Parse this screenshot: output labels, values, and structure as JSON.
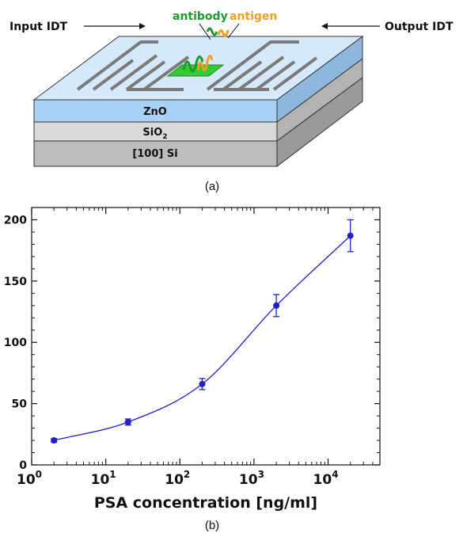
{
  "diagram": {
    "labels": {
      "input_idt": "Input IDT",
      "output_idt": "Output IDT",
      "antibody": "antibody",
      "antigen": "antigen",
      "zno": "ZnO",
      "sio2_base": "SiO",
      "sio2_sub": "2",
      "si": "[100] Si"
    },
    "caption": "(a)",
    "colors": {
      "antibody": "#1a9a2a",
      "antigen": "#f0a020",
      "zno": "#a9d0f5",
      "sio2": "#d9d9d9",
      "si": "#bcbcbc",
      "pad": "#33cc33"
    }
  },
  "chart_caption": "(b)",
  "chart_data": {
    "type": "scatter",
    "title": "",
    "xlabel": "PSA concentration [ng/ml]",
    "ylabel": "",
    "x_scale": "log",
    "xlim": [
      1,
      50000
    ],
    "ylim": [
      0,
      210
    ],
    "x_ticks": [
      1,
      10,
      100,
      1000,
      10000
    ],
    "x_tick_labels": [
      {
        "base": "10",
        "exp": "0"
      },
      {
        "base": "10",
        "exp": "1"
      },
      {
        "base": "10",
        "exp": "2"
      },
      {
        "base": "10",
        "exp": "3"
      },
      {
        "base": "10",
        "exp": "4"
      }
    ],
    "y_ticks": [
      0,
      50,
      100,
      150,
      200
    ],
    "y_tick_labels": [
      "0",
      "50",
      "100",
      "150",
      "200"
    ],
    "grid": false,
    "color": "#1f1fd0",
    "series": [
      {
        "x": [
          2,
          20,
          200,
          2000,
          20000
        ],
        "y": [
          20,
          35,
          66,
          130,
          187
        ],
        "err": [
          1.5,
          2.5,
          4.5,
          9,
          13
        ]
      }
    ]
  }
}
